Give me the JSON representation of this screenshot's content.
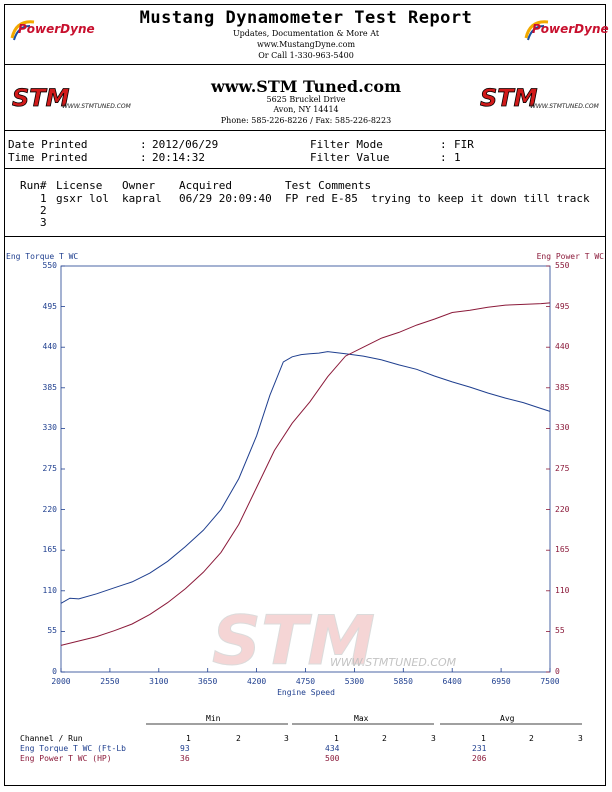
{
  "header": {
    "title": "Mustang Dynamometer Test Report",
    "line1": "Updates, Documentation & More At",
    "line2": "www.MustangDyne.com",
    "line3": "Or Call 1-330-963-5400",
    "logo_text": "PowerDyne"
  },
  "shop": {
    "site": "www.STM Tuned.com",
    "address1": "5625 Bruckel Drive",
    "address2": "Avon, NY 14414",
    "phone_fax": "Phone: 585-226-8226  /  Fax: 585-226-8223",
    "logo_text": "STM",
    "logo_sub": "WWW.STMTUNED.COM"
  },
  "info": {
    "date_label": "Date Printed",
    "date_value": "2012/06/29",
    "time_label": "Time Printed",
    "time_value": "20:14:32",
    "filter_mode_label": "Filter Mode",
    "filter_mode_value": "FIR",
    "filter_value_label": "Filter Value",
    "filter_value_value": "1"
  },
  "runs": {
    "headers": {
      "run": "Run#",
      "license": "License",
      "owner": "Owner",
      "acquired": "Acquired",
      "comments": "Test Comments"
    },
    "rows": [
      {
        "num": "1",
        "license": "gsxr lol",
        "owner": "kapral",
        "acquired": "06/29 20:09:40",
        "comments": "FP red E-85  trying to keep it down till track"
      },
      {
        "num": "2",
        "license": "",
        "owner": "",
        "acquired": "",
        "comments": ""
      },
      {
        "num": "3",
        "license": "",
        "owner": "",
        "acquired": "",
        "comments": ""
      }
    ]
  },
  "chart_data": {
    "type": "line",
    "xlabel": "Engine Speed",
    "ylabel_left": "Eng Torque T WC",
    "ylabel_right": "Eng Power T WC",
    "xlim": [
      2000,
      7500
    ],
    "ylim": [
      0,
      550
    ],
    "x_ticks": [
      2000,
      2550,
      3100,
      3650,
      4200,
      4750,
      5300,
      5850,
      6400,
      6950,
      7500
    ],
    "y_ticks": [
      0,
      55,
      110,
      165,
      220,
      275,
      330,
      385,
      440,
      495,
      550
    ],
    "watermark": "STM",
    "watermark_sub": "WWW.STMTUNED.COM",
    "series": [
      {
        "name": "Eng Torque T WC",
        "color": "#1f3f8f",
        "axis": "left",
        "x": [
          2000,
          2100,
          2200,
          2400,
          2600,
          2800,
          3000,
          3200,
          3400,
          3600,
          3800,
          4000,
          4200,
          4350,
          4500,
          4600,
          4700,
          4800,
          4900,
          5000,
          5200,
          5400,
          5600,
          5800,
          6000,
          6200,
          6400,
          6600,
          6800,
          7000,
          7200,
          7400,
          7500
        ],
        "y": [
          93,
          100,
          99,
          106,
          114,
          122,
          134,
          150,
          170,
          192,
          220,
          262,
          320,
          375,
          420,
          427,
          430,
          431,
          432,
          434,
          431,
          428,
          423,
          416,
          410,
          401,
          393,
          386,
          378,
          371,
          365,
          357,
          353
        ]
      },
      {
        "name": "Eng Power T WC",
        "color": "#8b1a3a",
        "axis": "right",
        "x": [
          2000,
          2200,
          2400,
          2600,
          2800,
          3000,
          3200,
          3400,
          3600,
          3800,
          4000,
          4200,
          4400,
          4600,
          4800,
          5000,
          5200,
          5400,
          5600,
          5800,
          6000,
          6200,
          6400,
          6600,
          6800,
          7000,
          7200,
          7400,
          7500
        ],
        "y": [
          36,
          42,
          48,
          56,
          65,
          78,
          94,
          113,
          135,
          162,
          200,
          250,
          300,
          337,
          366,
          400,
          428,
          440,
          452,
          460,
          470,
          478,
          487,
          490,
          494,
          497,
          498,
          499,
          500
        ]
      }
    ]
  },
  "stats": {
    "group_min": "Min",
    "group_max": "Max",
    "group_avg": "Avg",
    "channel_label": "Channel / Run",
    "run_cols": [
      "1",
      "2",
      "3"
    ],
    "rows": [
      {
        "label": "Eng Torque T WC (Ft-Lb",
        "min": "93",
        "max": "434",
        "avg": "231",
        "color": "#1f3f8f"
      },
      {
        "label": "Eng Power T WC (HP)",
        "min": "36",
        "max": "500",
        "avg": "206",
        "color": "#8b1a3a"
      }
    ]
  }
}
